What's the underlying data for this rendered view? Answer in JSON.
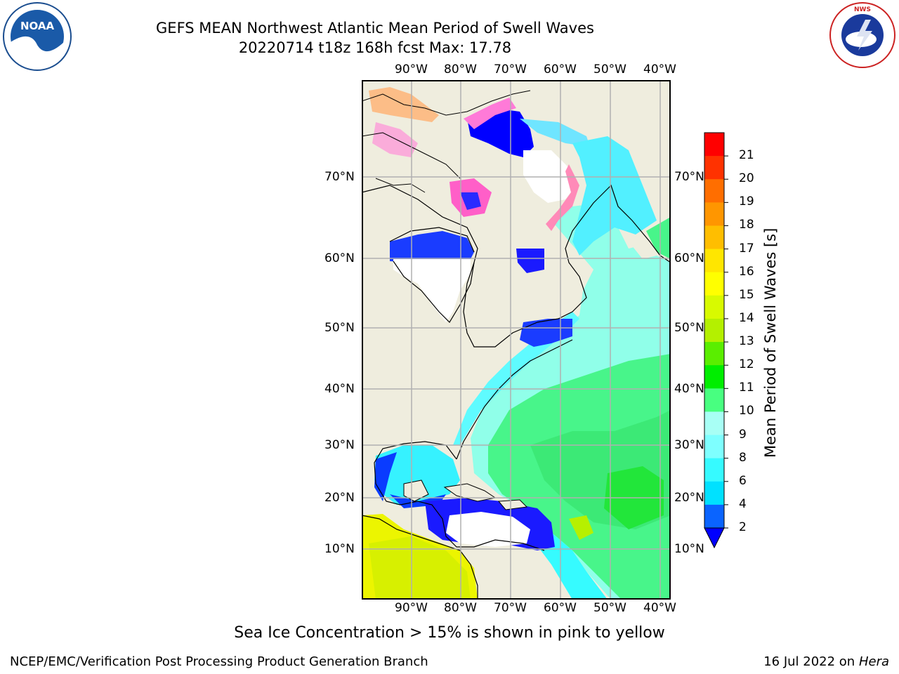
{
  "header": {
    "title_line1": "GEFS MEAN Northwest Atlantic Mean Period of Swell Waves",
    "title_line2": "20220714 t18z 168h fcst   Max: 17.78"
  },
  "logos": {
    "left": "NOAA",
    "right": "NATIONAL WEATHER SERVICE"
  },
  "map": {
    "lon_labels_top": [
      "90°W",
      "80°W",
      "70°W",
      "60°W",
      "50°W",
      "40°W"
    ],
    "lon_labels_bottom": [
      "90°W",
      "80°W",
      "70°W",
      "60°W",
      "50°W",
      "40°W"
    ],
    "lat_labels_left": [
      "70°N",
      "60°N",
      "50°N",
      "40°N",
      "30°N",
      "20°N",
      "10°N"
    ],
    "lat_labels_right": [
      "70°N",
      "60°N",
      "50°N",
      "40°N",
      "30°N",
      "20°N",
      "10°N"
    ],
    "land_color": "#efedde",
    "grid_color": "#b0b0b0"
  },
  "colorbar": {
    "title": "Mean Period of Swell Waves [s]",
    "tick_labels": [
      "2",
      "4",
      "6",
      "8",
      "9",
      "10",
      "11",
      "12",
      "13",
      "14",
      "15",
      "16",
      "17",
      "18",
      "19",
      "20",
      "21"
    ],
    "colors": [
      "#0a64ff",
      "#00e1ff",
      "#36faff",
      "#7effff",
      "#a8fff5",
      "#48ff80",
      "#00ee00",
      "#5aee00",
      "#b4f000",
      "#d8fa00",
      "#ffff00",
      "#ffe600",
      "#ffbe00",
      "#ff9600",
      "#ff6e00",
      "#ff3200",
      "#ff0000"
    ],
    "under_color": "#0000ff"
  },
  "footer": {
    "note": "Sea Ice Concentration > 15% is shown in pink to yellow",
    "left": "NCEP/EMC/Verification Post Processing Product Generation Branch",
    "right_date": "16 Jul 2022 on ",
    "right_host": "Hera"
  }
}
